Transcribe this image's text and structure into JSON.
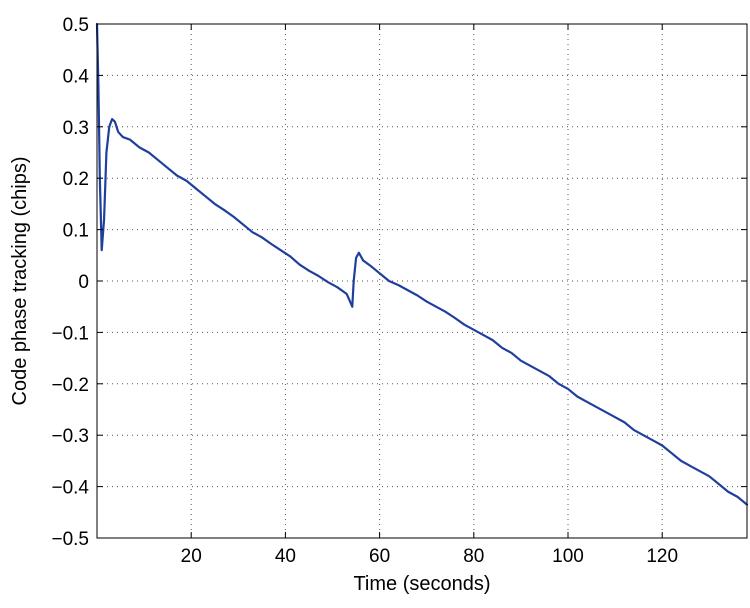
{
  "chart_data": {
    "type": "line",
    "xlabel": "Time (seconds)",
    "ylabel": "Code phase tracking (chips)",
    "xlim": [
      0,
      138
    ],
    "ylim": [
      -0.5,
      0.5
    ],
    "xticks": [
      20,
      40,
      60,
      80,
      100,
      120
    ],
    "xtick_labels": [
      "20",
      "40",
      "60",
      "80",
      "100",
      "120"
    ],
    "yticks": [
      -0.5,
      -0.4,
      -0.3,
      -0.2,
      -0.1,
      0,
      0.1,
      0.2,
      0.3,
      0.4,
      0.5
    ],
    "ytick_labels": [
      "−0.5",
      "−0.4",
      "−0.3",
      "−0.2",
      "−0.1",
      "0",
      "0.1",
      "0.2",
      "0.3",
      "0.4",
      "0.5"
    ],
    "grid": true,
    "series": [
      {
        "color": "#1f3f9e",
        "x": [
          0,
          0.3,
          0.6,
          1.0,
          1.5,
          2.0,
          2.6,
          3.2,
          3.8,
          4.5,
          5.5,
          7,
          9,
          11,
          13,
          15,
          17,
          19,
          21,
          23,
          25,
          27,
          29,
          31,
          33,
          35,
          37,
          39,
          41,
          43,
          45,
          47,
          49,
          51,
          53,
          54.2,
          54.5,
          55.0,
          55.6,
          56.5,
          58,
          60,
          62,
          64,
          66,
          68,
          70,
          72,
          74,
          76,
          78,
          80,
          82,
          84,
          86,
          88,
          90,
          92,
          94,
          96,
          98,
          100,
          102,
          104,
          106,
          108,
          110,
          112,
          114,
          116,
          118,
          120,
          122,
          124,
          126,
          128,
          130,
          132,
          134,
          136,
          138
        ],
        "y": [
          0.5,
          0.38,
          0.2,
          0.06,
          0.12,
          0.25,
          0.3,
          0.315,
          0.31,
          0.29,
          0.28,
          0.275,
          0.26,
          0.25,
          0.235,
          0.22,
          0.205,
          0.195,
          0.18,
          0.165,
          0.15,
          0.138,
          0.125,
          0.11,
          0.095,
          0.085,
          0.072,
          0.06,
          0.048,
          0.032,
          0.02,
          0.01,
          -0.002,
          -0.012,
          -0.025,
          -0.05,
          0.0,
          0.045,
          0.055,
          0.04,
          0.03,
          0.015,
          0.0,
          -0.008,
          -0.018,
          -0.028,
          -0.04,
          -0.05,
          -0.06,
          -0.072,
          -0.085,
          -0.095,
          -0.105,
          -0.115,
          -0.13,
          -0.14,
          -0.155,
          -0.165,
          -0.175,
          -0.185,
          -0.2,
          -0.21,
          -0.225,
          -0.235,
          -0.245,
          -0.255,
          -0.265,
          -0.275,
          -0.29,
          -0.3,
          -0.31,
          -0.32,
          -0.335,
          -0.35,
          -0.36,
          -0.37,
          -0.38,
          -0.395,
          -0.41,
          -0.42,
          -0.435
        ]
      }
    ]
  }
}
